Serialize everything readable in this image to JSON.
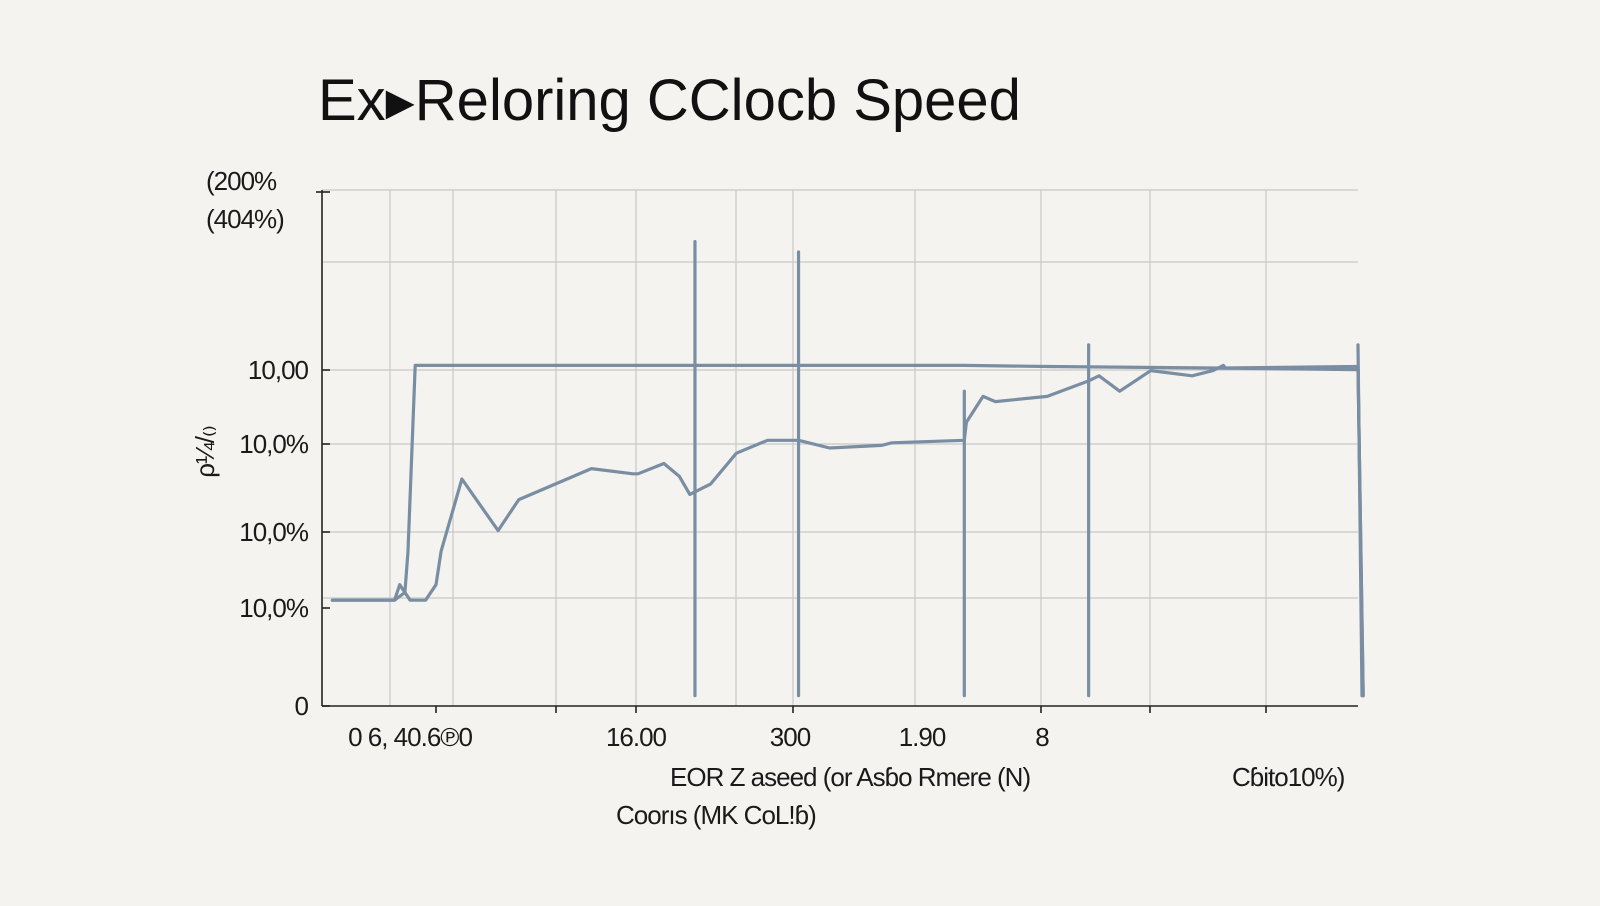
{
  "chart_data": {
    "type": "line",
    "title": "Ex▸Reloring CClocb Speed",
    "top_labels": [
      "(200%",
      "(404%)"
    ],
    "ylabel": "ρ¼/₍₎",
    "y_ticks": [
      "10,00",
      "10,0%",
      "10,0%",
      "10,0%",
      "0"
    ],
    "x_ticks": [
      "0 6, 40.6℗0",
      "16.00",
      "300",
      "1.90",
      "8"
    ],
    "xlabel_line1": "EOR Z aseed (or Asɓo Rmere (N)",
    "xlabel_line2": "Coorıs (MK CoL!ɓ)",
    "right_label": "Cɓito10%)",
    "xlim": [
      0,
      100
    ],
    "ylim": [
      0,
      100
    ],
    "grid": true,
    "colors": {
      "line": "#7a8ea3",
      "grid": "#c8c8c8",
      "axis": "#222222"
    },
    "series": [
      {
        "x": [
          1,
          7,
          7,
          7.5,
          8.5,
          10,
          11,
          11.5,
          13.5,
          17,
          19,
          26,
          30,
          30.5,
          33,
          34.5,
          35.5,
          37.5,
          40,
          43,
          46,
          49,
          54,
          55,
          62,
          62.2,
          63.8,
          65,
          70,
          74,
          75,
          77,
          80,
          84,
          86,
          87,
          87.2,
          100,
          100.5
        ],
        "y": [
          20.5,
          20.5,
          20.5,
          23.5,
          20.5,
          20.5,
          23.5,
          30,
          44,
          34,
          40,
          46,
          45,
          45,
          47,
          44.5,
          41,
          43,
          49,
          51.5,
          51.5,
          50,
          50.5,
          51,
          51.5,
          55,
          60,
          59,
          60,
          63,
          64,
          61,
          65,
          64,
          65,
          66,
          65.5,
          65.8,
          2
        ]
      },
      {
        "x": [
          1,
          7,
          8,
          8.3,
          9,
          14,
          20,
          28,
          36,
          46,
          62,
          70,
          86,
          100,
          100.5
        ],
        "y": [
          20.5,
          20.5,
          22,
          30,
          66,
          66,
          66,
          66,
          66,
          66,
          66,
          65.8,
          65.5,
          65.2,
          2
        ]
      }
    ],
    "vertical_markers": [
      {
        "x": 36,
        "y_top": 90
      },
      {
        "x": 46,
        "y_top": 88
      },
      {
        "x": 62,
        "y_top": 61
      },
      {
        "x": 74,
        "y_top": 70
      },
      {
        "x": 100,
        "y_top": 70
      }
    ]
  }
}
